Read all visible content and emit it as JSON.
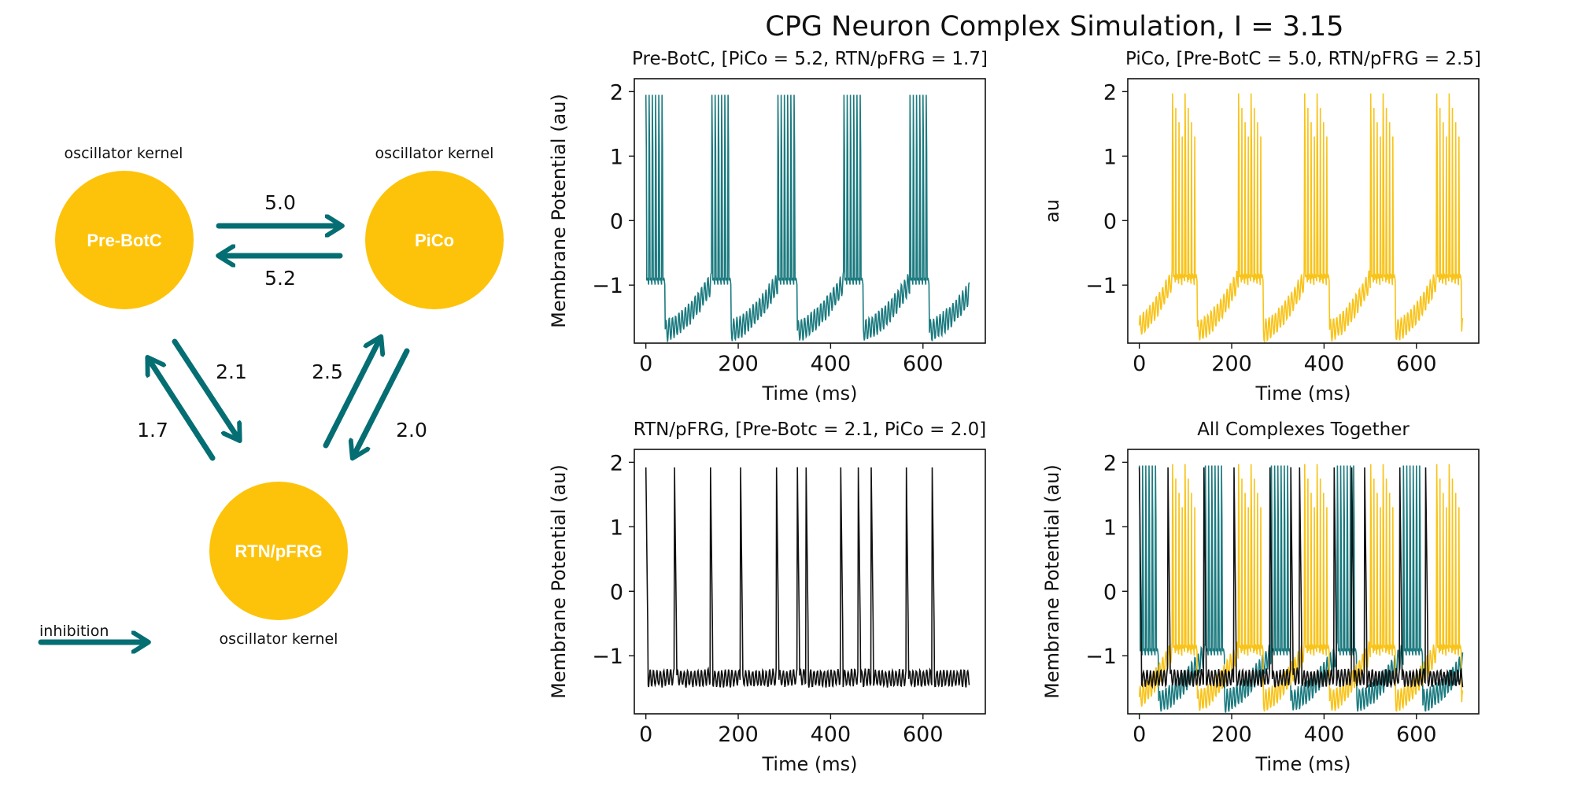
{
  "figure": {
    "title": "CPG Neuron Complex Simulation, I = 3.15"
  },
  "colors": {
    "node": "#fdc30a",
    "arrow": "#046e73",
    "prebotc": "#1b7a7f",
    "pico": "#f8c31a",
    "rtn": "#111111"
  },
  "diagram": {
    "nodes": [
      {
        "id": "prebotc",
        "label": "Pre-BotC",
        "caption": "oscillator kernel"
      },
      {
        "id": "pico",
        "label": "PiCo",
        "caption": "oscillator kernel"
      },
      {
        "id": "rtn",
        "label": "RTN/pFRG",
        "caption": "oscillator kernel"
      }
    ],
    "edges": [
      {
        "from": "prebotc",
        "to": "pico",
        "weight": "5.0"
      },
      {
        "from": "pico",
        "to": "prebotc",
        "weight": "5.2"
      },
      {
        "from": "prebotc",
        "to": "rtn",
        "weight": "2.1"
      },
      {
        "from": "rtn",
        "to": "prebotc",
        "weight": "1.7"
      },
      {
        "from": "rtn",
        "to": "pico",
        "weight": "2.5"
      },
      {
        "from": "pico",
        "to": "rtn",
        "weight": "2.0"
      }
    ],
    "legend": {
      "label": "inhibition"
    }
  },
  "chart_data": [
    {
      "type": "line",
      "title": "Pre-BotC, [PiCo = 5.2, RTN/pFRG = 1.7]",
      "xlabel": "Time (ms)",
      "ylabel": "Membrane Potential (au)",
      "xlim": [
        -25,
        735
      ],
      "ylim": [
        -1.9,
        2.2
      ],
      "xticks": [
        "0",
        "200",
        "400",
        "600"
      ],
      "yticks": [
        "2",
        "1",
        "0",
        "−1"
      ],
      "series": [
        {
          "color": "prebotc",
          "period": 143,
          "burst_start": 0,
          "burst_end": 42,
          "spike_count": 6,
          "peak": 1.95,
          "plateau": -0.95,
          "trough": -1.7,
          "x_end": 700
        }
      ]
    },
    {
      "type": "line",
      "title": "PiCo, [Pre-BotC = 5.0, RTN/pFRG = 2.5]",
      "xlabel": "Time (ms)",
      "ylabel": "au",
      "xlim": [
        -25,
        735
      ],
      "ylim": [
        -1.9,
        2.2
      ],
      "xticks": [
        "0",
        "200",
        "400",
        "600"
      ],
      "yticks": [
        "2",
        "1",
        "0",
        "−1"
      ],
      "series": [
        {
          "color": "pico",
          "period": 143,
          "burst_start": 72,
          "burst_end": 126,
          "spike_count": 8,
          "peak": 1.97,
          "plateau": -0.9,
          "trough": -1.7,
          "x_end": 700
        }
      ]
    },
    {
      "type": "line",
      "title": "RTN/pFRG, [Pre-Botc = 2.1, PiCo = 2.0]",
      "xlabel": "Time (ms)",
      "ylabel": "Membrane Potential (au)",
      "xlim": [
        -25,
        735
      ],
      "ylim": [
        -1.9,
        2.2
      ],
      "xticks": [
        "0",
        "200",
        "400",
        "600"
      ],
      "yticks": [
        "2",
        "1",
        "0",
        "−1"
      ],
      "series": [
        {
          "color": "rtn",
          "spike_times": [
            0,
            62,
            140,
            205,
            283,
            328,
            347,
            422,
            460,
            488,
            564,
            620
          ],
          "peak": 1.92,
          "baseline": -1.35,
          "x_end": 700
        }
      ]
    },
    {
      "type": "line",
      "title": "All Complexes Together",
      "xlabel": "Time (ms)",
      "ylabel": "Membrane Potential (au)",
      "xlim": [
        -25,
        735
      ],
      "ylim": [
        -1.9,
        2.2
      ],
      "xticks": [
        "0",
        "200",
        "400",
        "600"
      ],
      "yticks": [
        "2",
        "1",
        "0",
        "−1"
      ],
      "series": [
        {
          "ref": 0
        },
        {
          "ref": 1
        },
        {
          "ref": 2
        }
      ]
    }
  ]
}
